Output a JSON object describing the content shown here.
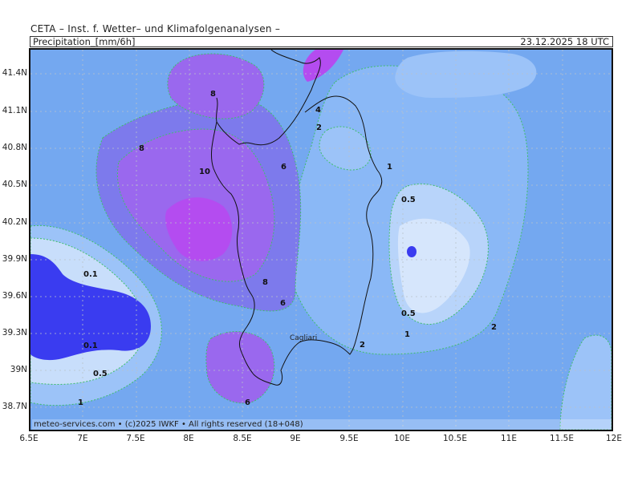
{
  "header": {
    "institute": "CETA – Inst. f. Wetter– und Klimafolgenanalysen –",
    "parameter": "Precipitation_[mm/6h]",
    "valid_time": "23.12.2025  18 UTC"
  },
  "footer": {
    "copyright": "meteo-services.com • (c)2025 IWKF • All rights reserved (18+048)"
  },
  "axes": {
    "lat_ticks": [
      "41.4N",
      "41.1N",
      "40.8N",
      "40.5N",
      "40.2N",
      "39.9N",
      "39.6N",
      "39.3N",
      "39N",
      "38.7N"
    ],
    "lon_ticks": [
      "6.5E",
      "7E",
      "7.5E",
      "8E",
      "8.5E",
      "9E",
      "9.5E",
      "10E",
      "10.5E",
      "11E",
      "11.5E",
      "12E"
    ]
  },
  "map": {
    "city": "Cagliari",
    "contour_labels": [
      "8",
      "4",
      "2",
      "8",
      "10",
      "6",
      "1",
      "0.5",
      "0.1",
      "8",
      "6",
      "0.5",
      "1",
      "2",
      "0.1",
      "0.5",
      "2",
      "1",
      "6"
    ]
  },
  "colors": {
    "bg_field": "#74a8f0",
    "level_0_5": "#9cc3f8",
    "level_0_1": "#c8defb",
    "level_lt_0_1": "#dbe8fb",
    "level_2": "#6c9cf0",
    "level_6": "#7a78ec",
    "level_8": "#9a68ee",
    "level_10": "#b44cf0",
    "deep_blue": "#3a3cf0"
  }
}
